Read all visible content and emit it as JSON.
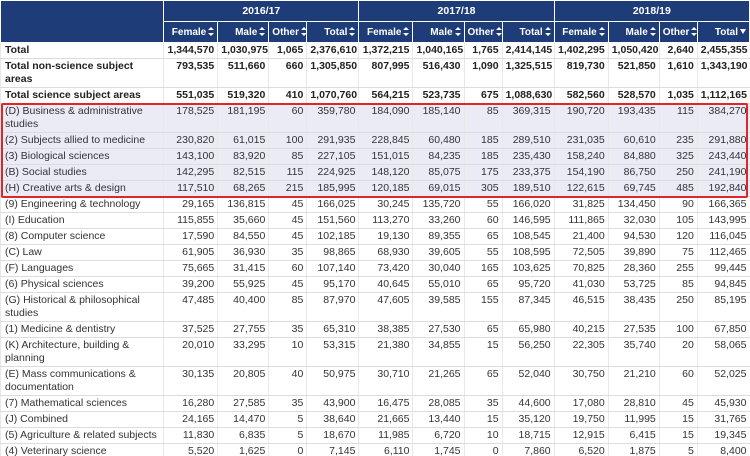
{
  "table": {
    "year_headers": [
      "2016/17",
      "2017/18",
      "2018/19"
    ],
    "column_headers": [
      "Female",
      "Male",
      "Other",
      "Total",
      "Female",
      "Male",
      "Other",
      "Total",
      "Female",
      "Male",
      "Other",
      "Total"
    ],
    "rows": [
      {
        "label": "Total",
        "cells": [
          "1,344,570",
          "1,030,975",
          "1,065",
          "2,376,610",
          "1,372,215",
          "1,040,165",
          "1,765",
          "2,414,145",
          "1,402,295",
          "1,050,420",
          "2,640",
          "2,455,355"
        ]
      },
      {
        "label": "Total non-science subject areas",
        "cells": [
          "793,535",
          "511,660",
          "660",
          "1,305,850",
          "807,995",
          "516,430",
          "1,090",
          "1,325,515",
          "819,730",
          "521,850",
          "1,610",
          "1,343,190"
        ]
      },
      {
        "label": "Total science subject areas",
        "cells": [
          "551,035",
          "519,320",
          "410",
          "1,070,760",
          "564,215",
          "523,735",
          "675",
          "1,088,630",
          "582,560",
          "528,570",
          "1,035",
          "1,112,165"
        ]
      },
      {
        "label": "(D) Business & administrative studies",
        "cells": [
          "178,525",
          "181,195",
          "60",
          "359,780",
          "184,090",
          "185,140",
          "85",
          "369,315",
          "190,720",
          "193,435",
          "115",
          "384,270"
        ]
      },
      {
        "label": "(2) Subjects allied to medicine",
        "cells": [
          "230,820",
          "61,015",
          "100",
          "291,935",
          "228,845",
          "60,480",
          "185",
          "289,510",
          "231,035",
          "60,610",
          "235",
          "291,880"
        ]
      },
      {
        "label": "(3) Biological sciences",
        "cells": [
          "143,100",
          "83,920",
          "85",
          "227,105",
          "151,015",
          "84,235",
          "185",
          "235,430",
          "158,240",
          "84,880",
          "325",
          "243,440"
        ]
      },
      {
        "label": "(B) Social studies",
        "cells": [
          "142,295",
          "82,515",
          "115",
          "224,925",
          "148,120",
          "85,075",
          "175",
          "233,375",
          "154,190",
          "86,750",
          "250",
          "241,190"
        ]
      },
      {
        "label": "(H) Creative arts & design",
        "cells": [
          "117,510",
          "68,265",
          "215",
          "185,995",
          "120,185",
          "69,015",
          "305",
          "189,510",
          "122,615",
          "69,745",
          "485",
          "192,840"
        ]
      },
      {
        "label": "(9) Engineering & technology",
        "cells": [
          "29,165",
          "136,815",
          "45",
          "166,025",
          "30,245",
          "135,720",
          "55",
          "166,020",
          "31,825",
          "134,450",
          "90",
          "166,365"
        ]
      },
      {
        "label": "(I) Education",
        "cells": [
          "115,855",
          "35,660",
          "45",
          "151,560",
          "113,270",
          "33,260",
          "60",
          "146,595",
          "111,865",
          "32,030",
          "105",
          "143,995"
        ]
      },
      {
        "label": "(8) Computer science",
        "cells": [
          "17,590",
          "84,550",
          "45",
          "102,185",
          "19,130",
          "89,355",
          "65",
          "108,545",
          "21,400",
          "94,530",
          "120",
          "116,045"
        ]
      },
      {
        "label": "(C) Law",
        "cells": [
          "61,905",
          "36,930",
          "35",
          "98,865",
          "68,930",
          "39,605",
          "55",
          "108,595",
          "72,505",
          "39,890",
          "75",
          "112,465"
        ]
      },
      {
        "label": "(F) Languages",
        "cells": [
          "75,665",
          "31,415",
          "60",
          "107,140",
          "73,420",
          "30,040",
          "165",
          "103,625",
          "70,825",
          "28,360",
          "255",
          "99,445"
        ]
      },
      {
        "label": "(6) Physical sciences",
        "cells": [
          "39,200",
          "55,925",
          "45",
          "95,170",
          "40,645",
          "55,010",
          "65",
          "95,720",
          "41,030",
          "53,725",
          "85",
          "94,845"
        ]
      },
      {
        "label": "(G) Historical & philosophical studies",
        "cells": [
          "47,485",
          "40,400",
          "85",
          "87,970",
          "47,605",
          "39,585",
          "155",
          "87,345",
          "46,515",
          "38,435",
          "250",
          "85,195"
        ]
      },
      {
        "label": "(1) Medicine & dentistry",
        "cells": [
          "37,525",
          "27,755",
          "35",
          "65,310",
          "38,385",
          "27,530",
          "65",
          "65,980",
          "40,215",
          "27,535",
          "100",
          "67,850"
        ]
      },
      {
        "label": "(K) Architecture, building & planning",
        "cells": [
          "20,010",
          "33,295",
          "10",
          "53,315",
          "21,380",
          "34,855",
          "15",
          "56,250",
          "22,305",
          "35,740",
          "20",
          "58,065"
        ]
      },
      {
        "label": "(E) Mass communications & documentation",
        "cells": [
          "30,135",
          "20,805",
          "40",
          "50,975",
          "30,710",
          "21,265",
          "65",
          "52,040",
          "30,750",
          "21,210",
          "60",
          "52,025"
        ]
      },
      {
        "label": "(7) Mathematical sciences",
        "cells": [
          "16,280",
          "27,585",
          "35",
          "43,900",
          "16,475",
          "28,085",
          "35",
          "44,600",
          "17,080",
          "28,810",
          "45",
          "45,930"
        ]
      },
      {
        "label": "(J) Combined",
        "cells": [
          "24,165",
          "14,470",
          "5",
          "38,640",
          "21,665",
          "13,440",
          "15",
          "35,120",
          "19,750",
          "11,995",
          "15",
          "31,765"
        ]
      },
      {
        "label": "(5) Agriculture & related subjects",
        "cells": [
          "11,830",
          "6,835",
          "5",
          "18,670",
          "11,985",
          "6,720",
          "10",
          "18,715",
          "12,915",
          "6,415",
          "15",
          "19,345"
        ]
      },
      {
        "label": "(4) Veterinary science",
        "cells": [
          "5,520",
          "1,625",
          "0",
          "7,145",
          "6,110",
          "1,745",
          "0",
          "7,860",
          "6,520",
          "1,875",
          "5",
          "8,400"
        ]
      }
    ]
  }
}
